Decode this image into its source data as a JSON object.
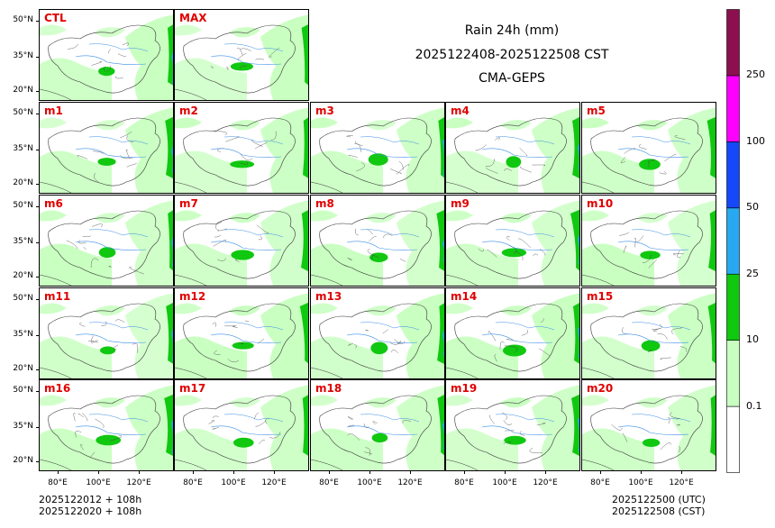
{
  "chart_data": {
    "type": "heatmap",
    "title": [
      "Rain 24h (mm)",
      "2025122408-2025122508 CST",
      "CMA-GEPS"
    ],
    "variable": "24-hour accumulated rainfall (mm)",
    "panels": [
      "CTL",
      "MAX",
      "m1",
      "m2",
      "m3",
      "m4",
      "m5",
      "m6",
      "m7",
      "m8",
      "m9",
      "m10",
      "m11",
      "m12",
      "m13",
      "m14",
      "m15",
      "m16",
      "m17",
      "m18",
      "m19",
      "m20"
    ],
    "y_tick_labels": [
      "50°N",
      "35°N",
      "20°N"
    ],
    "x_tick_labels": [
      "80°E",
      "100°E",
      "120°E"
    ],
    "colorbar": {
      "levels": [
        "0.1",
        "10",
        "25",
        "50",
        "100",
        "250"
      ],
      "colors": [
        "#ffffff",
        "#c8ffc0",
        "#10c810",
        "#28a8f0",
        "#1448f8",
        "#ff00ff",
        "#8c1050"
      ]
    }
  },
  "footer": {
    "left_line1": "2025122012 + 108h",
    "left_line2": "2025122020 + 108h",
    "right_line1": "2025122500 (UTC)",
    "right_line2": "2025122508 (CST)"
  }
}
